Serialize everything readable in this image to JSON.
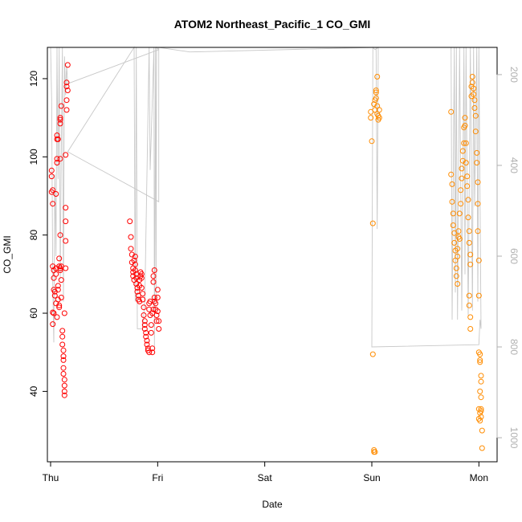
{
  "chart_data": {
    "type": "scatter",
    "title": "ATOM2 Northeast_Pacific_1 CO_GMI",
    "xlabel": "Date",
    "ylabel": "CO_GMI",
    "x_ticks": [
      "Thu",
      "Fri",
      "Sat",
      "Sun",
      "Mon"
    ],
    "xlim": [
      -0.03,
      4.17
    ],
    "ylim": [
      22.0,
      128.0
    ],
    "y_ticks": [
      40,
      60,
      80,
      100,
      120
    ],
    "y2_ticks": [
      200,
      400,
      600,
      800,
      1000
    ],
    "y2lim": [
      1053,
      140
    ],
    "grid": false,
    "colors": {
      "series_red": "#ff0000",
      "series_orange": "#ff8c00",
      "pressure_line": "#c8c8c8",
      "right_axis": "#b0b0b0"
    },
    "series": [
      {
        "color": "series_red",
        "points": [
          [
            0.01,
            95.0
          ],
          [
            0.01,
            96.5
          ],
          [
            0.02,
            91.5
          ],
          [
            0.01,
            91.0
          ],
          [
            0.02,
            88.0
          ],
          [
            0.02,
            72.0
          ],
          [
            0.03,
            71.0
          ],
          [
            0.03,
            69.0
          ],
          [
            0.03,
            66.0
          ],
          [
            0.02,
            60.2
          ],
          [
            0.03,
            60.0
          ],
          [
            0.02,
            57.2
          ],
          [
            0.04,
            65.5
          ],
          [
            0.04,
            64.5
          ],
          [
            0.05,
            71.5
          ],
          [
            0.05,
            70.0
          ],
          [
            0.05,
            62.5
          ],
          [
            0.06,
            59.0
          ],
          [
            0.05,
            90.5
          ],
          [
            0.06,
            99.5
          ],
          [
            0.06,
            98.5
          ],
          [
            0.06,
            104.5
          ],
          [
            0.06,
            105.5
          ],
          [
            0.07,
            104.5
          ],
          [
            0.07,
            67.0
          ],
          [
            0.07,
            66.0
          ],
          [
            0.07,
            63.5
          ],
          [
            0.08,
            62.0
          ],
          [
            0.08,
            61.5
          ],
          [
            0.08,
            74.0
          ],
          [
            0.08,
            72.0
          ],
          [
            0.09,
            71.0
          ],
          [
            0.09,
            71.5
          ],
          [
            0.09,
            109.5
          ],
          [
            0.09,
            110.0
          ],
          [
            0.09,
            108.5
          ],
          [
            0.1,
            113.0
          ],
          [
            0.09,
            99.5
          ],
          [
            0.09,
            80.0
          ],
          [
            0.1,
            72.0
          ],
          [
            0.1,
            68.5
          ],
          [
            0.1,
            64.0
          ],
          [
            0.11,
            55.5
          ],
          [
            0.11,
            54.0
          ],
          [
            0.11,
            52.0
          ],
          [
            0.12,
            50.5
          ],
          [
            0.12,
            49.0
          ],
          [
            0.12,
            48.0
          ],
          [
            0.12,
            46.0
          ],
          [
            0.12,
            44.5
          ],
          [
            0.13,
            43.0
          ],
          [
            0.13,
            41.5
          ],
          [
            0.13,
            40.0
          ],
          [
            0.13,
            39.0
          ],
          [
            0.13,
            60.0
          ],
          [
            0.14,
            71.5
          ],
          [
            0.14,
            78.5
          ],
          [
            0.14,
            83.5
          ],
          [
            0.14,
            87.0
          ],
          [
            0.14,
            100.5
          ],
          [
            0.15,
            112.0
          ],
          [
            0.15,
            114.5
          ],
          [
            0.15,
            118.0
          ],
          [
            0.15,
            119.0
          ],
          [
            0.16,
            123.5
          ],
          [
            0.16,
            117.0
          ],
          [
            0.74,
            83.5
          ],
          [
            0.75,
            79.5
          ],
          [
            0.75,
            76.5
          ],
          [
            0.76,
            75.0
          ],
          [
            0.76,
            73.0
          ],
          [
            0.77,
            71.5
          ],
          [
            0.77,
            70.5
          ],
          [
            0.77,
            69.5
          ],
          [
            0.78,
            68.5
          ],
          [
            0.78,
            73.5
          ],
          [
            0.79,
            74.5
          ],
          [
            0.79,
            72.5
          ],
          [
            0.79,
            71.0
          ],
          [
            0.8,
            70.0
          ],
          [
            0.8,
            69.0
          ],
          [
            0.8,
            67.5
          ],
          [
            0.81,
            66.5
          ],
          [
            0.81,
            65.5
          ],
          [
            0.82,
            64.5
          ],
          [
            0.82,
            63.5
          ],
          [
            0.83,
            63.0
          ],
          [
            0.83,
            67.0
          ],
          [
            0.83,
            68.5
          ],
          [
            0.84,
            69.5
          ],
          [
            0.84,
            70.5
          ],
          [
            0.85,
            70.0
          ],
          [
            0.85,
            69.0
          ],
          [
            0.85,
            66.5
          ],
          [
            0.86,
            65.0
          ],
          [
            0.86,
            63.5
          ],
          [
            0.87,
            61.5
          ],
          [
            0.87,
            59.5
          ],
          [
            0.88,
            58.0
          ],
          [
            0.88,
            57.0
          ],
          [
            0.88,
            56.0
          ],
          [
            0.89,
            55.0
          ],
          [
            0.89,
            54.0
          ],
          [
            0.9,
            53.0
          ],
          [
            0.9,
            52.0
          ],
          [
            0.91,
            51.0
          ],
          [
            0.91,
            50.5
          ],
          [
            0.92,
            50.0
          ],
          [
            0.92,
            61.0
          ],
          [
            0.92,
            62.5
          ],
          [
            0.93,
            63.0
          ],
          [
            0.93,
            59.5
          ],
          [
            0.94,
            57.0
          ],
          [
            0.94,
            55.0
          ],
          [
            0.95,
            51.0
          ],
          [
            0.95,
            50.0
          ],
          [
            0.95,
            60.0
          ],
          [
            0.96,
            61.0
          ],
          [
            0.96,
            68.0
          ],
          [
            0.96,
            69.5
          ],
          [
            0.97,
            71.0
          ],
          [
            0.97,
            64.0
          ],
          [
            0.97,
            63.0
          ],
          [
            0.98,
            62.5
          ],
          [
            0.98,
            61.0
          ],
          [
            0.99,
            59.5
          ],
          [
            0.99,
            58.0
          ],
          [
            1.0,
            66.0
          ],
          [
            1.0,
            64.0
          ],
          [
            1.0,
            60.5
          ],
          [
            1.01,
            58.0
          ],
          [
            1.01,
            56.0
          ]
        ]
      },
      {
        "color": "series_orange",
        "points": [
          [
            2.99,
            110.0
          ],
          [
            2.99,
            111.5
          ],
          [
            3.0,
            104.0
          ],
          [
            3.01,
            83.0
          ],
          [
            3.01,
            49.5
          ],
          [
            3.02,
            25.0
          ],
          [
            3.02,
            24.5
          ],
          [
            3.03,
            24.5
          ],
          [
            3.02,
            113.5
          ],
          [
            3.03,
            114.5
          ],
          [
            3.03,
            112.0
          ],
          [
            3.04,
            115.0
          ],
          [
            3.04,
            116.5
          ],
          [
            3.04,
            117.0
          ],
          [
            3.05,
            120.5
          ],
          [
            3.05,
            113.0
          ],
          [
            3.05,
            111.0
          ],
          [
            3.06,
            110.5
          ],
          [
            3.06,
            109.5
          ],
          [
            3.07,
            110.0
          ],
          [
            3.07,
            112.0
          ],
          [
            3.74,
            111.5
          ],
          [
            3.74,
            95.5
          ],
          [
            3.75,
            93.0
          ],
          [
            3.75,
            88.5
          ],
          [
            3.76,
            85.5
          ],
          [
            3.76,
            82.5
          ],
          [
            3.77,
            80.5
          ],
          [
            3.77,
            78.0
          ],
          [
            3.78,
            76.0
          ],
          [
            3.78,
            73.5
          ],
          [
            3.79,
            71.5
          ],
          [
            3.79,
            69.5
          ],
          [
            3.8,
            67.5
          ],
          [
            3.8,
            74.5
          ],
          [
            3.8,
            76.5
          ],
          [
            3.81,
            79.5
          ],
          [
            3.81,
            81.0
          ],
          [
            3.82,
            79.0
          ],
          [
            3.82,
            85.5
          ],
          [
            3.83,
            88.0
          ],
          [
            3.83,
            91.5
          ],
          [
            3.84,
            94.5
          ],
          [
            3.84,
            97.0
          ],
          [
            3.85,
            99.0
          ],
          [
            3.85,
            101.5
          ],
          [
            3.86,
            103.5
          ],
          [
            3.86,
            107.5
          ],
          [
            3.87,
            110.0
          ],
          [
            3.87,
            108.0
          ],
          [
            3.88,
            103.5
          ],
          [
            3.88,
            98.5
          ],
          [
            3.89,
            95.0
          ],
          [
            3.89,
            92.5
          ],
          [
            3.9,
            89.0
          ],
          [
            3.9,
            84.5
          ],
          [
            3.91,
            81.0
          ],
          [
            3.91,
            78.0
          ],
          [
            3.92,
            75.0
          ],
          [
            3.92,
            72.5
          ],
          [
            3.93,
            115.5
          ],
          [
            3.93,
            118.0
          ],
          [
            3.94,
            119.0
          ],
          [
            3.94,
            120.5
          ],
          [
            3.95,
            117.5
          ],
          [
            3.95,
            116.0
          ],
          [
            3.96,
            114.5
          ],
          [
            3.96,
            112.5
          ],
          [
            3.97,
            110.5
          ],
          [
            3.97,
            106.5
          ],
          [
            3.98,
            101.0
          ],
          [
            3.98,
            98.5
          ],
          [
            3.99,
            93.5
          ],
          [
            3.99,
            88.0
          ],
          [
            3.99,
            81.0
          ],
          [
            4.0,
            73.5
          ],
          [
            4.0,
            64.5
          ],
          [
            3.91,
            64.5
          ],
          [
            3.91,
            62.0
          ],
          [
            3.92,
            59.0
          ],
          [
            3.92,
            56.0
          ],
          [
            4.01,
            49.5
          ],
          [
            4.01,
            48.0
          ],
          [
            4.0,
            50.0
          ],
          [
            4.01,
            47.5
          ],
          [
            4.02,
            44.0
          ],
          [
            4.02,
            42.5
          ],
          [
            4.01,
            40.0
          ],
          [
            4.02,
            38.5
          ],
          [
            4.0,
            35.5
          ],
          [
            4.01,
            34.5
          ],
          [
            4.02,
            33.5
          ],
          [
            4.0,
            33.0
          ],
          [
            4.01,
            32.5
          ],
          [
            4.02,
            35.0
          ],
          [
            4.02,
            35.5
          ],
          [
            4.03,
            30.0
          ],
          [
            4.03,
            25.5
          ]
        ]
      }
    ],
    "pressure_line": {
      "color": "pressure_line",
      "points": [
        [
          0.0,
          60
        ],
        [
          0.01,
          255
        ],
        [
          0.02,
          660
        ],
        [
          0.03,
          790
        ],
        [
          0.04,
          420
        ],
        [
          0.05,
          600
        ],
        [
          0.06,
          60
        ],
        [
          0.07,
          430
        ],
        [
          0.08,
          120
        ],
        [
          0.09,
          650
        ],
        [
          0.1,
          380
        ],
        [
          0.11,
          60
        ],
        [
          0.12,
          700
        ],
        [
          0.13,
          160
        ],
        [
          0.14,
          245
        ],
        [
          0.15,
          180
        ],
        [
          0.16,
          220
        ],
        [
          1.01,
          145
        ],
        [
          0.99,
          60
        ],
        [
          0.985,
          700
        ],
        [
          0.98,
          120
        ],
        [
          0.97,
          800
        ],
        [
          0.965,
          60
        ],
        [
          0.93,
          410
        ],
        [
          0.92,
          60
        ],
        [
          0.88,
          700
        ],
        [
          0.86,
          760
        ],
        [
          0.81,
          760
        ],
        [
          0.8,
          60
        ],
        [
          0.79,
          700
        ],
        [
          0.78,
          60
        ],
        [
          0.16,
          370
        ],
        [
          1.01,
          480
        ],
        [
          1.01,
          60
        ],
        [
          1.3,
          150
        ],
        [
          3.04,
          60
        ],
        [
          3.05,
          540
        ],
        [
          3.06,
          60
        ],
        [
          3.03,
          145
        ],
        [
          3.01,
          60
        ],
        [
          3.0,
          800
        ],
        [
          4.0,
          795
        ],
        [
          4.01,
          740
        ],
        [
          4.02,
          760
        ],
        [
          4.0,
          60
        ],
        [
          3.99,
          700
        ],
        [
          3.98,
          60
        ],
        [
          3.96,
          490
        ],
        [
          3.95,
          60
        ],
        [
          3.94,
          720
        ],
        [
          3.92,
          60
        ],
        [
          3.9,
          730
        ],
        [
          3.88,
          60
        ],
        [
          3.87,
          640
        ],
        [
          3.86,
          60
        ],
        [
          3.84,
          720
        ],
        [
          3.82,
          60
        ],
        [
          3.8,
          740
        ],
        [
          3.79,
          60
        ],
        [
          3.78,
          680
        ],
        [
          3.77,
          60
        ],
        [
          3.75,
          740
        ],
        [
          3.74,
          60
        ]
      ]
    }
  }
}
